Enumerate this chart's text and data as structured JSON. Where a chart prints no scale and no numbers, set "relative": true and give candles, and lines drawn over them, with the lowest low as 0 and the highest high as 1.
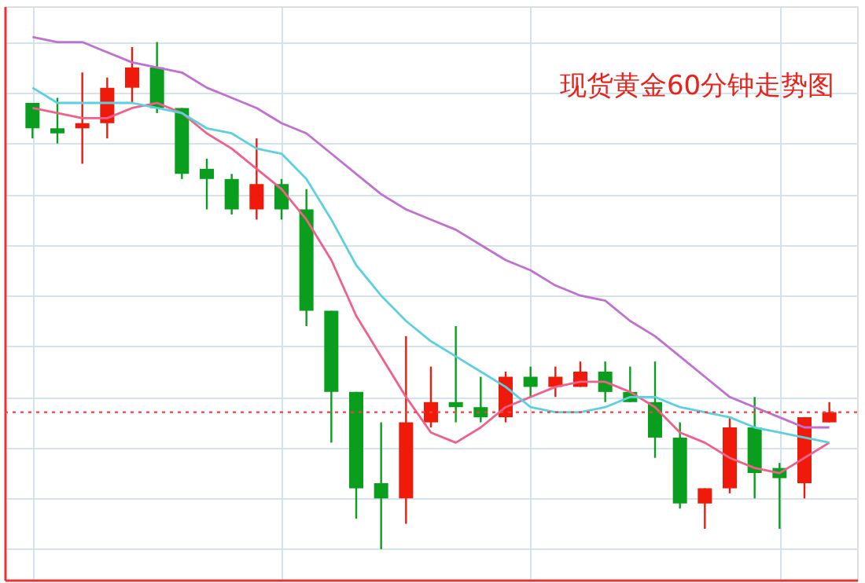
{
  "chart_data": {
    "type": "candlestick",
    "title": "现货黄金60分钟走势图",
    "relative": true,
    "grid": true,
    "tick_labels": false,
    "categories": [
      null,
      null,
      null,
      null,
      null,
      null,
      null,
      null,
      null,
      null,
      null,
      null,
      null,
      null,
      null,
      null,
      null,
      null,
      null,
      null,
      null,
      null,
      null,
      null,
      null,
      null,
      null,
      null,
      null,
      null,
      null,
      null,
      null
    ],
    "ohlc": [
      [
        0.88,
        0.88,
        0.81,
        0.83
      ],
      [
        0.83,
        0.89,
        0.8,
        0.82
      ],
      [
        0.83,
        0.94,
        0.76,
        0.84
      ],
      [
        0.84,
        0.93,
        0.81,
        0.91
      ],
      [
        0.91,
        0.99,
        0.88,
        0.95
      ],
      [
        0.95,
        1.0,
        0.86,
        0.87
      ],
      [
        0.87,
        0.87,
        0.73,
        0.74
      ],
      [
        0.75,
        0.77,
        0.67,
        0.73
      ],
      [
        0.73,
        0.74,
        0.66,
        0.67
      ],
      [
        0.67,
        0.81,
        0.65,
        0.72
      ],
      [
        0.72,
        0.73,
        0.65,
        0.67
      ],
      [
        0.67,
        0.71,
        0.44,
        0.47
      ],
      [
        0.47,
        0.47,
        0.21,
        0.31
      ],
      [
        0.31,
        0.31,
        0.06,
        0.12
      ],
      [
        0.13,
        0.25,
        0.0,
        0.1
      ],
      [
        0.1,
        0.42,
        0.05,
        0.25
      ],
      [
        0.25,
        0.36,
        0.24,
        0.29
      ],
      [
        0.29,
        0.44,
        0.25,
        0.28
      ],
      [
        0.28,
        0.34,
        0.25,
        0.26
      ],
      [
        0.26,
        0.35,
        0.25,
        0.34
      ],
      [
        0.34,
        0.36,
        0.3,
        0.32
      ],
      [
        0.32,
        0.36,
        0.3,
        0.34
      ],
      [
        0.32,
        0.37,
        0.32,
        0.35
      ],
      [
        0.35,
        0.37,
        0.29,
        0.31
      ],
      [
        0.31,
        0.36,
        0.29,
        0.29
      ],
      [
        0.29,
        0.37,
        0.18,
        0.22
      ],
      [
        0.22,
        0.25,
        0.08,
        0.09
      ],
      [
        0.09,
        0.12,
        0.04,
        0.12
      ],
      [
        0.12,
        0.26,
        0.11,
        0.24
      ],
      [
        0.24,
        0.3,
        0.1,
        0.15
      ],
      [
        0.16,
        0.17,
        0.04,
        0.14
      ],
      [
        0.13,
        0.26,
        0.1,
        0.26
      ],
      [
        0.25,
        0.29,
        0.25,
        0.27
      ]
    ],
    "colors": [
      "#0a9e1e",
      "#0a9e1e",
      "#f01a0a",
      "#f01a0a",
      "#f01a0a",
      "#0a9e1e",
      "#0a9e1e",
      "#0a9e1e",
      "#0a9e1e",
      "#f01a0a",
      "#0a9e1e",
      "#0a9e1e",
      "#0a9e1e",
      "#0a9e1e",
      "#0a9e1e",
      "#f01a0a",
      "#f01a0a",
      "#0a9e1e",
      "#0a9e1e",
      "#f01a0a",
      "#0a9e1e",
      "#f01a0a",
      "#f01a0a",
      "#0a9e1e",
      "#0a9e1e",
      "#0a9e1e",
      "#0a9e1e",
      "#f01a0a",
      "#f01a0a",
      "#0a9e1e",
      "#0a9e1e",
      "#f01a0a",
      "#f01a0a"
    ],
    "series": [
      {
        "type": "line",
        "color": "#f0608a",
        "values": [
          0.87,
          0.86,
          0.85,
          0.85,
          0.87,
          0.88,
          0.86,
          0.82,
          0.79,
          0.75,
          0.71,
          0.65,
          0.57,
          0.46,
          0.38,
          0.3,
          0.23,
          0.21,
          0.24,
          0.28,
          0.3,
          0.32,
          0.33,
          0.33,
          0.31,
          0.28,
          0.23,
          0.21,
          0.18,
          0.16,
          0.15,
          0.18,
          0.21
        ]
      },
      {
        "type": "line",
        "color": "#5dd0e0",
        "values": [
          0.91,
          0.88,
          0.88,
          0.88,
          0.88,
          0.87,
          0.86,
          0.83,
          0.82,
          0.79,
          0.78,
          0.73,
          0.65,
          0.56,
          0.5,
          0.45,
          0.41,
          0.38,
          0.35,
          0.32,
          0.28,
          0.27,
          0.27,
          0.28,
          0.3,
          0.3,
          0.28,
          0.27,
          0.26,
          0.24,
          0.23,
          0.22,
          0.21
        ]
      },
      {
        "type": "line",
        "color": "#c070d0",
        "values": [
          1.01,
          1.0,
          1.0,
          0.98,
          0.96,
          0.95,
          0.94,
          0.91,
          0.89,
          0.87,
          0.84,
          0.82,
          0.78,
          0.74,
          0.7,
          0.67,
          0.65,
          0.63,
          0.6,
          0.57,
          0.55,
          0.52,
          0.5,
          0.49,
          0.45,
          0.42,
          0.38,
          0.34,
          0.3,
          0.28,
          0.26,
          0.24,
          0.24
        ]
      }
    ],
    "ref_lines": [
      {
        "axis": "y",
        "value": 0.27,
        "color": "#f04040",
        "line_style": "dotted"
      }
    ]
  }
}
